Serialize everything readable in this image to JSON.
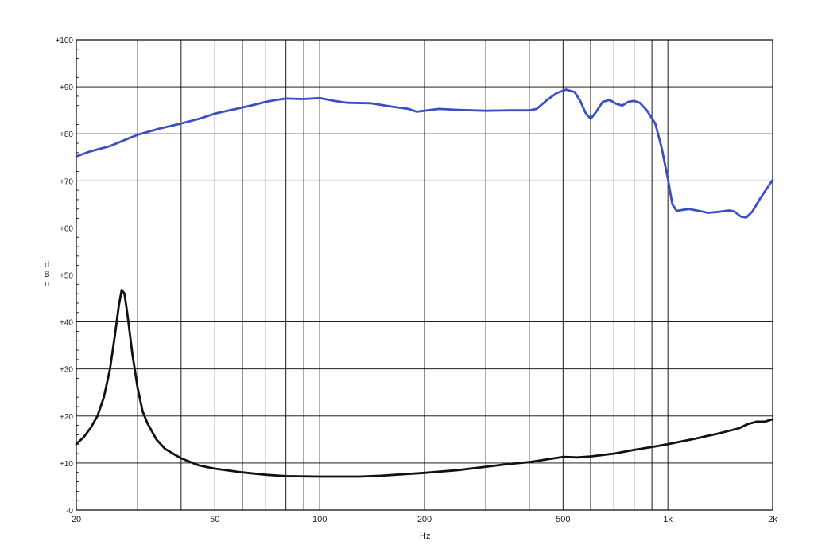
{
  "chart_data": {
    "type": "line",
    "xscale": "log",
    "xlabel": "Hz",
    "ylabel_letters": [
      "d",
      "B",
      "u"
    ],
    "xlim": [
      20,
      2000
    ],
    "ylim": [
      0,
      100
    ],
    "grid": true,
    "x_ticks": [
      {
        "value": 20,
        "label": "20"
      },
      {
        "value": 50,
        "label": "50"
      },
      {
        "value": 100,
        "label": "100"
      },
      {
        "value": 200,
        "label": "200"
      },
      {
        "value": 500,
        "label": "500"
      },
      {
        "value": 1000,
        "label": "1k"
      },
      {
        "value": 2000,
        "label": "2k"
      }
    ],
    "x_gridlines": [
      20,
      30,
      40,
      50,
      60,
      70,
      80,
      90,
      100,
      200,
      300,
      400,
      500,
      600,
      700,
      800,
      900,
      1000,
      2000
    ],
    "y_ticks": [
      {
        "value": 0,
        "label": "-0"
      },
      {
        "value": 10,
        "label": "+10"
      },
      {
        "value": 20,
        "label": "+20"
      },
      {
        "value": 30,
        "label": "+30"
      },
      {
        "value": 40,
        "label": "+40"
      },
      {
        "value": 50,
        "label": "+50"
      },
      {
        "value": 60,
        "label": "+60"
      },
      {
        "value": 70,
        "label": "+70"
      },
      {
        "value": 80,
        "label": "+80"
      },
      {
        "value": 90,
        "label": "+90"
      },
      {
        "value": 100,
        "label": "+100"
      }
    ],
    "series": [
      {
        "color": "#3a4fc4",
        "points": [
          [
            20,
            75.2
          ],
          [
            22,
            76.3
          ],
          [
            25,
            77.4
          ],
          [
            28,
            78.9
          ],
          [
            30,
            79.8
          ],
          [
            35,
            81.2
          ],
          [
            40,
            82.2
          ],
          [
            45,
            83.2
          ],
          [
            50,
            84.3
          ],
          [
            55,
            85.0
          ],
          [
            60,
            85.6
          ],
          [
            65,
            86.2
          ],
          [
            70,
            86.8
          ],
          [
            75,
            87.2
          ],
          [
            80,
            87.5
          ],
          [
            90,
            87.4
          ],
          [
            100,
            87.6
          ],
          [
            110,
            87.0
          ],
          [
            120,
            86.6
          ],
          [
            140,
            86.5
          ],
          [
            160,
            85.8
          ],
          [
            180,
            85.3
          ],
          [
            190,
            84.7
          ],
          [
            200,
            84.9
          ],
          [
            220,
            85.3
          ],
          [
            250,
            85.1
          ],
          [
            300,
            84.9
          ],
          [
            350,
            85.0
          ],
          [
            400,
            85.0
          ],
          [
            420,
            85.3
          ],
          [
            450,
            87.2
          ],
          [
            480,
            88.7
          ],
          [
            510,
            89.4
          ],
          [
            540,
            88.9
          ],
          [
            560,
            87.0
          ],
          [
            580,
            84.5
          ],
          [
            600,
            83.2
          ],
          [
            620,
            84.5
          ],
          [
            650,
            86.8
          ],
          [
            680,
            87.2
          ],
          [
            710,
            86.4
          ],
          [
            740,
            86.0
          ],
          [
            770,
            86.8
          ],
          [
            800,
            87.0
          ],
          [
            830,
            86.6
          ],
          [
            870,
            85.0
          ],
          [
            920,
            82.2
          ],
          [
            960,
            77.0
          ],
          [
            1000,
            70.5
          ],
          [
            1030,
            65.0
          ],
          [
            1060,
            63.6
          ],
          [
            1100,
            63.8
          ],
          [
            1150,
            64.0
          ],
          [
            1250,
            63.5
          ],
          [
            1300,
            63.2
          ],
          [
            1400,
            63.4
          ],
          [
            1500,
            63.7
          ],
          [
            1550,
            63.5
          ],
          [
            1620,
            62.4
          ],
          [
            1680,
            62.2
          ],
          [
            1750,
            63.5
          ],
          [
            1850,
            66.5
          ],
          [
            2000,
            70.2
          ]
        ]
      },
      {
        "color": "#111111",
        "points": [
          [
            20,
            14.0
          ],
          [
            21,
            15.5
          ],
          [
            22,
            17.5
          ],
          [
            23,
            20.0
          ],
          [
            24,
            24.0
          ],
          [
            25,
            30.0
          ],
          [
            25.8,
            37.0
          ],
          [
            26.5,
            43.5
          ],
          [
            27,
            46.8
          ],
          [
            27.5,
            46.0
          ],
          [
            28,
            42.0
          ],
          [
            29,
            33.0
          ],
          [
            30,
            26.0
          ],
          [
            31,
            21.0
          ],
          [
            32,
            18.5
          ],
          [
            34,
            15.0
          ],
          [
            36,
            13.0
          ],
          [
            40,
            11.0
          ],
          [
            45,
            9.5
          ],
          [
            50,
            8.8
          ],
          [
            60,
            8.0
          ],
          [
            70,
            7.5
          ],
          [
            80,
            7.2
          ],
          [
            100,
            7.1
          ],
          [
            130,
            7.1
          ],
          [
            150,
            7.3
          ],
          [
            200,
            7.9
          ],
          [
            250,
            8.5
          ],
          [
            300,
            9.2
          ],
          [
            350,
            9.8
          ],
          [
            400,
            10.2
          ],
          [
            450,
            10.8
          ],
          [
            500,
            11.3
          ],
          [
            550,
            11.2
          ],
          [
            600,
            11.4
          ],
          [
            700,
            12.0
          ],
          [
            800,
            12.8
          ],
          [
            900,
            13.4
          ],
          [
            1000,
            14.0
          ],
          [
            1200,
            15.2
          ],
          [
            1400,
            16.3
          ],
          [
            1600,
            17.4
          ],
          [
            1700,
            18.3
          ],
          [
            1800,
            18.8
          ],
          [
            1900,
            18.8
          ],
          [
            2000,
            19.3
          ]
        ]
      }
    ]
  }
}
